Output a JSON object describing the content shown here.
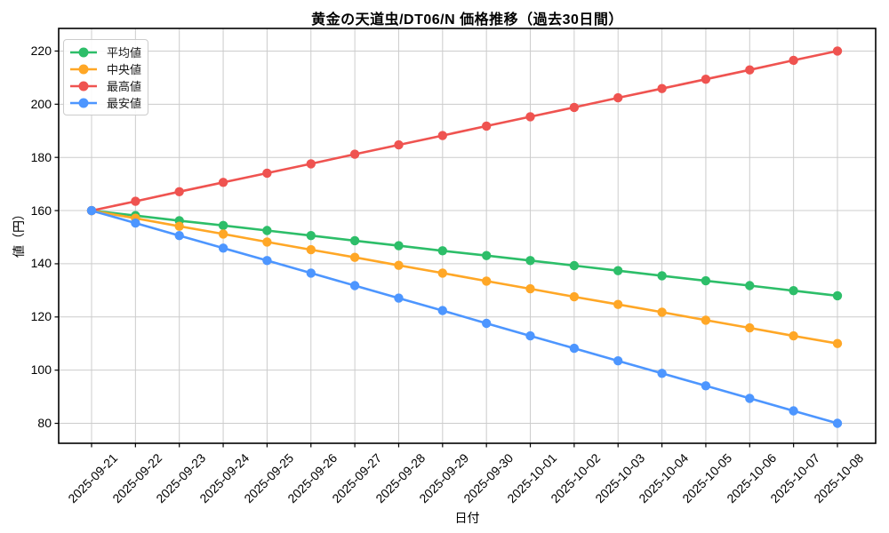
{
  "chart_data": {
    "type": "line",
    "title": "黄金の天道虫/DT06/N 価格推移（過去30日間）",
    "xlabel": "日付",
    "ylabel": "値（円）",
    "x": [
      "2025-09-21",
      "2025-09-22",
      "2025-09-23",
      "2025-09-24",
      "2025-09-25",
      "2025-09-26",
      "2025-09-27",
      "2025-09-28",
      "2025-09-29",
      "2025-09-30",
      "2025-10-01",
      "2025-10-02",
      "2025-10-03",
      "2025-10-04",
      "2025-10-05",
      "2025-10-06",
      "2025-10-07",
      "2025-10-08"
    ],
    "series": [
      {
        "key": "average",
        "name": "平均値",
        "color": "#2DBE69",
        "values": [
          160.0,
          158.1,
          156.2,
          154.4,
          152.5,
          150.6,
          148.7,
          146.8,
          144.9,
          143.1,
          141.2,
          139.3,
          137.4,
          135.5,
          133.6,
          131.8,
          129.9,
          128.0
        ]
      },
      {
        "key": "median",
        "name": "中央値",
        "color": "#FFA726",
        "values": [
          160.0,
          157.1,
          154.1,
          151.2,
          148.2,
          145.3,
          142.4,
          139.4,
          136.5,
          133.5,
          130.6,
          127.6,
          124.7,
          121.8,
          118.8,
          115.9,
          112.9,
          110.0
        ]
      },
      {
        "key": "highest",
        "name": "最高値",
        "color": "#EF5350",
        "values": [
          160.0,
          163.5,
          167.1,
          170.6,
          174.1,
          177.6,
          181.2,
          184.7,
          188.2,
          191.8,
          195.3,
          198.8,
          202.4,
          205.9,
          209.4,
          212.9,
          216.5,
          220.0
        ]
      },
      {
        "key": "lowest",
        "name": "最安値",
        "color": "#4D96FF",
        "values": [
          160.0,
          155.3,
          150.6,
          145.9,
          141.2,
          136.5,
          131.8,
          127.1,
          122.4,
          117.6,
          112.9,
          108.2,
          103.5,
          98.8,
          94.1,
          89.4,
          84.7,
          80.0
        ]
      }
    ],
    "yticks": [
      80,
      100,
      120,
      140,
      160,
      180,
      200,
      220
    ],
    "ylim": [
      72.5,
      228.5
    ],
    "grid": true,
    "grid_color": "#cccccc",
    "axis_color": "#000000",
    "legend_position": "upper left"
  }
}
